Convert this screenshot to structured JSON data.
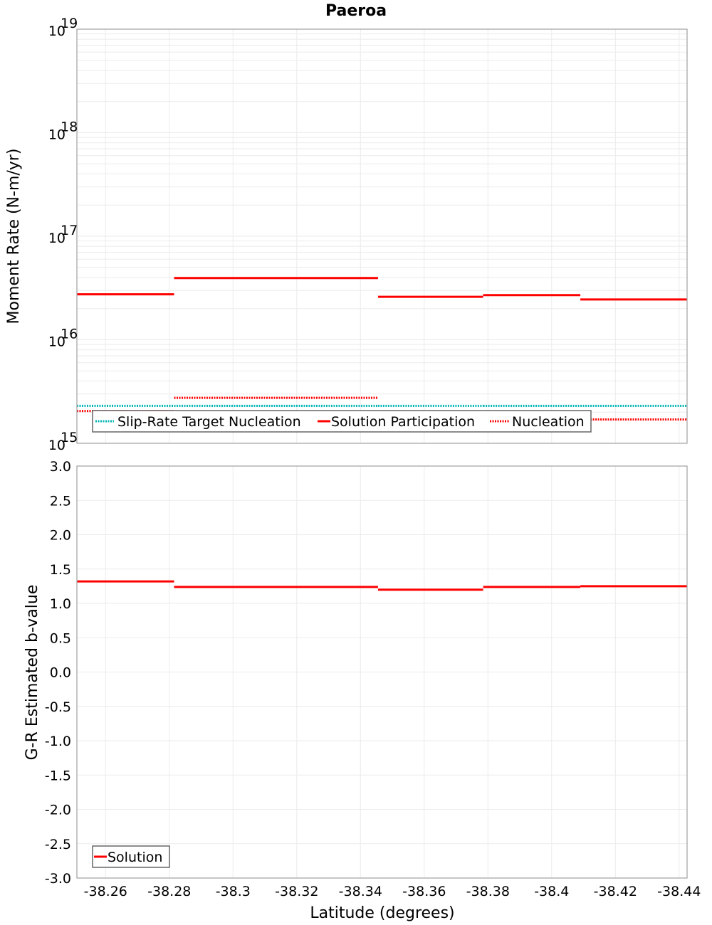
{
  "title": "Paeroa",
  "colors": {
    "solution": "#ff0000",
    "slip_rate_target": "#00b4b4",
    "nucleation": "#ff0000",
    "grid": "#ebebeb",
    "frame": "#a0a0a0"
  },
  "x_axis": {
    "label": "Latitude (degrees)",
    "ticks": [
      "-38.26",
      "-38.28",
      "-38.3",
      "-38.32",
      "-38.34",
      "-38.36",
      "-38.38",
      "-38.4",
      "-38.42",
      "-38.44"
    ]
  },
  "top_panel": {
    "ylabel": "Moment Rate (N-m/yr)",
    "yticks": [
      {
        "base": "10",
        "exp": "19"
      },
      {
        "base": "10",
        "exp": "18"
      },
      {
        "base": "10",
        "exp": "17"
      },
      {
        "base": "10",
        "exp": "16"
      },
      {
        "base": "10",
        "exp": "15"
      }
    ],
    "legend": [
      "Slip-Rate Target Nucleation",
      "Solution Participation",
      "Nucleation"
    ]
  },
  "bottom_panel": {
    "ylabel": "G-R Estimated b-value",
    "yticks": [
      "3.0",
      "2.5",
      "2.0",
      "1.5",
      "1.0",
      "0.5",
      "0.0",
      "-0.5",
      "-1.0",
      "-1.5",
      "-2.0",
      "-2.5",
      "-3.0"
    ],
    "legend": [
      "Solution"
    ]
  },
  "chart_data": [
    {
      "type": "line",
      "title": "Paeroa",
      "xlabel": "Latitude (degrees)",
      "ylabel": "Moment Rate (N-m/yr)",
      "yscale": "log",
      "xlim": [
        -38.251,
        -38.4425
      ],
      "ylim": [
        1000000000000000.0,
        1e+19
      ],
      "grid": true,
      "legend_position": "lower-left inside",
      "segments_x": [
        [
          -38.251,
          -38.2815
        ],
        [
          -38.2815,
          -38.312
        ],
        [
          -38.312,
          -38.3455
        ],
        [
          -38.3455,
          -38.3785
        ],
        [
          -38.3785,
          -38.409
        ],
        [
          -38.409,
          -38.4425
        ]
      ],
      "series": [
        {
          "name": "Slip-Rate Target Nucleation",
          "style": "dotted",
          "color": "#00b4b4",
          "values": [
            2300000000000000.0,
            2300000000000000.0,
            2300000000000000.0,
            2300000000000000.0,
            2300000000000000.0,
            2300000000000000.0
          ]
        },
        {
          "name": "Solution Participation",
          "style": "solid",
          "color": "#ff0000",
          "values": [
            2.75e+16,
            3.95e+16,
            3.95e+16,
            2.6e+16,
            2.7e+16,
            2.45e+16
          ]
        },
        {
          "name": "Nucleation",
          "style": "dotted",
          "color": "#ff0000",
          "values": [
            2050000000000000.0,
            2750000000000000.0,
            2750000000000000.0,
            1750000000000000.0,
            1900000000000000.0,
            1700000000000000.0
          ]
        }
      ]
    },
    {
      "type": "line",
      "xlabel": "Latitude (degrees)",
      "ylabel": "G-R Estimated b-value",
      "xlim": [
        -38.251,
        -38.4425
      ],
      "ylim": [
        -3.0,
        3.0
      ],
      "grid": true,
      "legend_position": "lower-left inside",
      "segments_x": [
        [
          -38.251,
          -38.2815
        ],
        [
          -38.2815,
          -38.312
        ],
        [
          -38.312,
          -38.3455
        ],
        [
          -38.3455,
          -38.3785
        ],
        [
          -38.3785,
          -38.409
        ],
        [
          -38.409,
          -38.4425
        ]
      ],
      "series": [
        {
          "name": "Solution",
          "style": "solid",
          "color": "#ff0000",
          "values": [
            1.32,
            1.24,
            1.24,
            1.2,
            1.24,
            1.25
          ]
        }
      ]
    }
  ]
}
